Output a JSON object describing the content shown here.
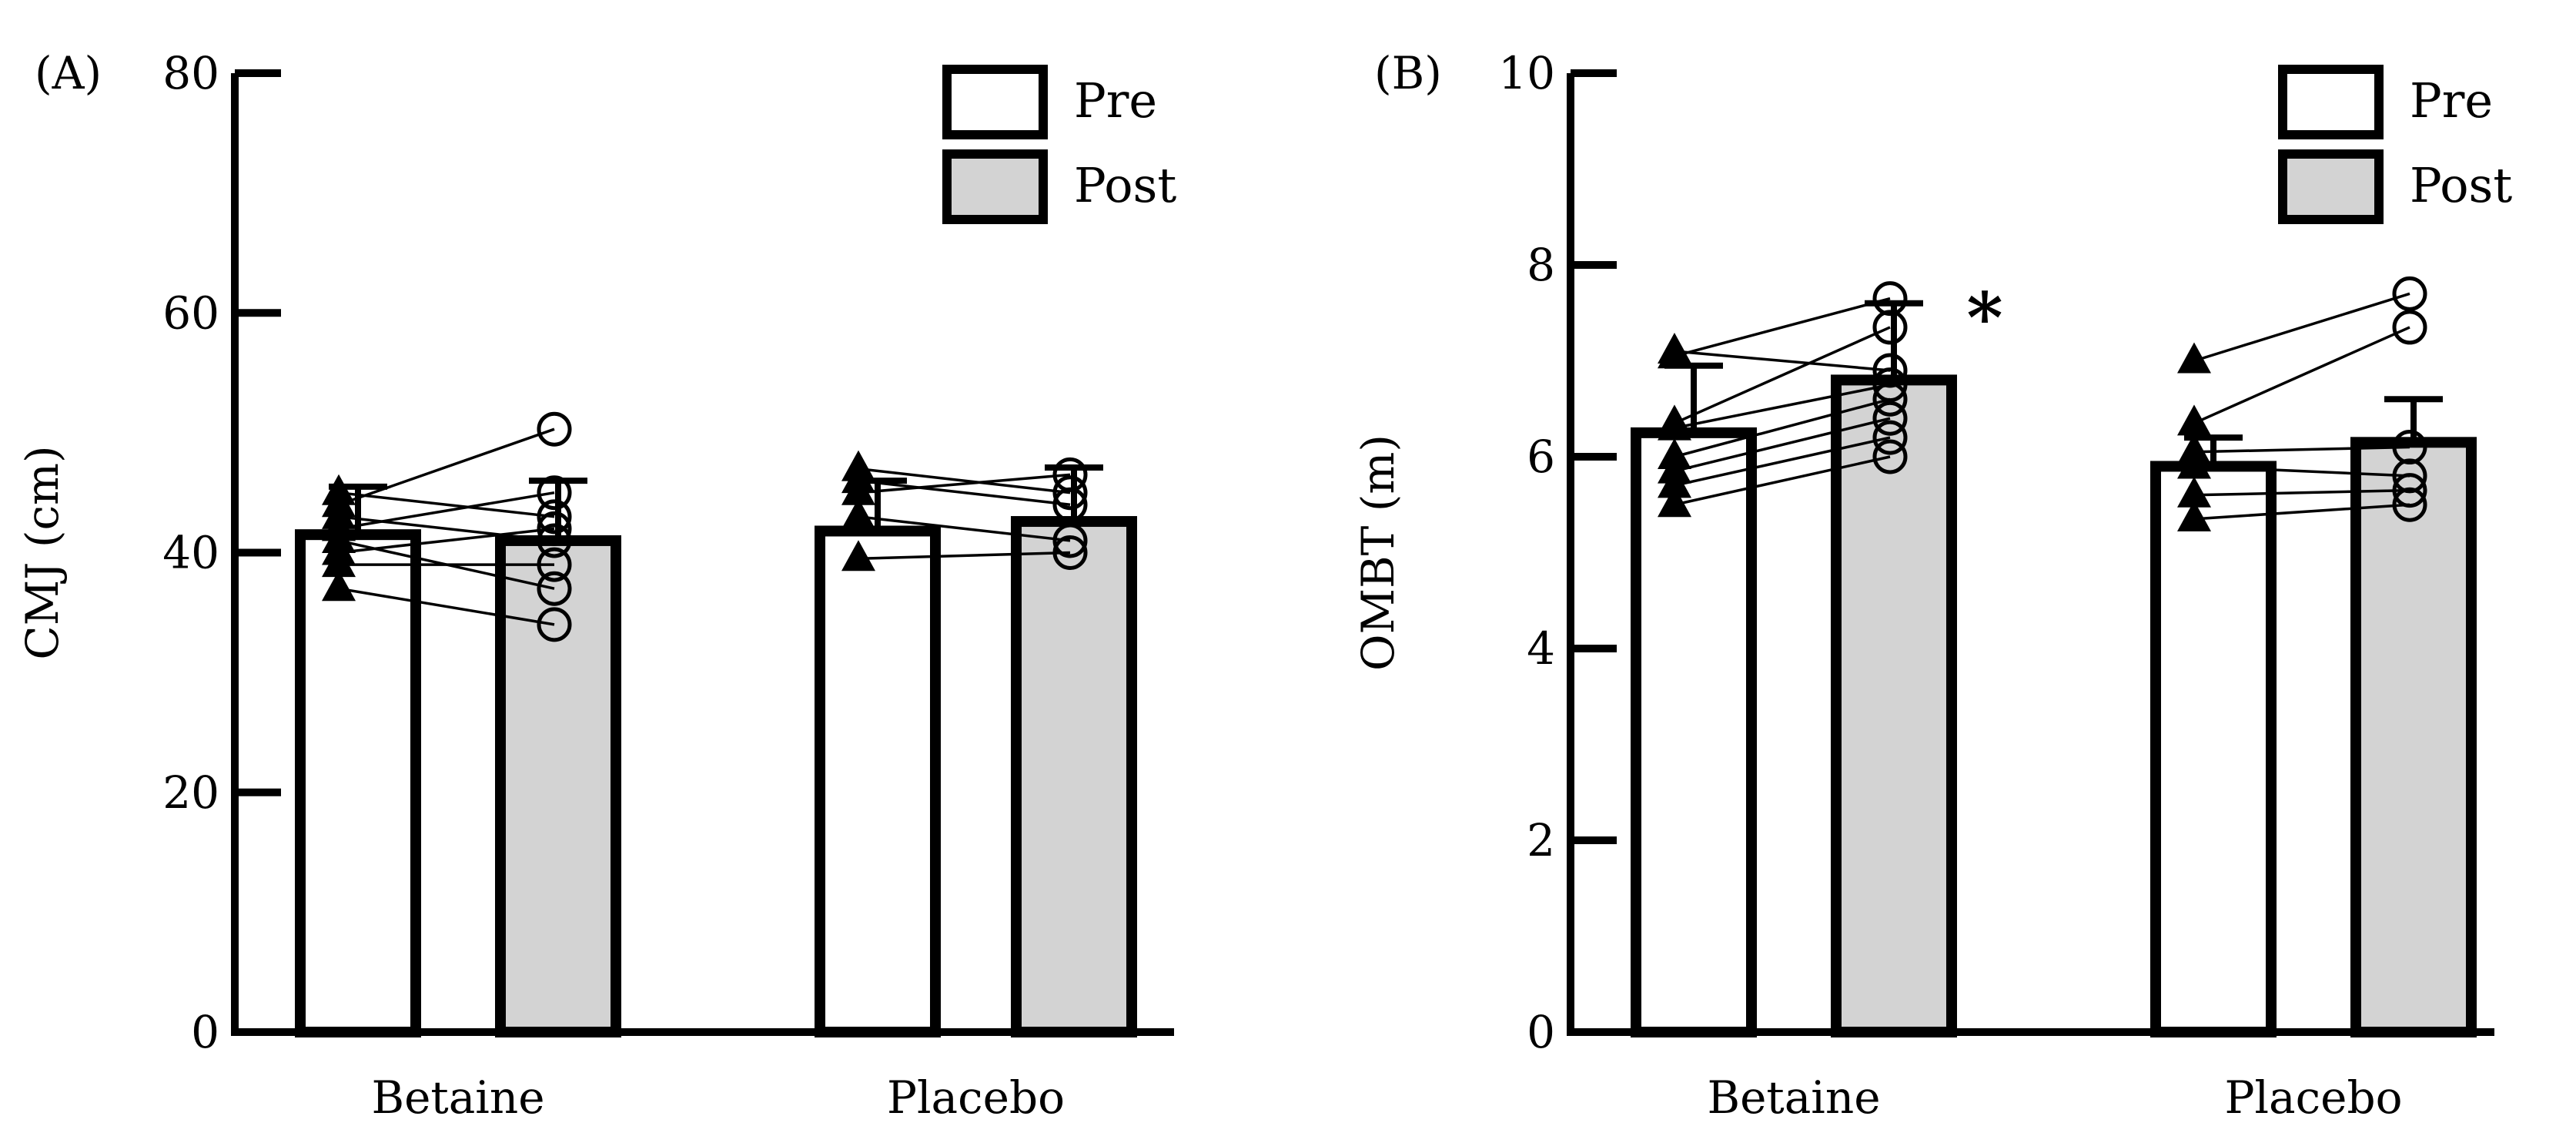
{
  "chart_data": [
    {
      "type": "bar",
      "panel_label": "(A)",
      "ylabel": "CMJ (cm)",
      "xlabel": "",
      "ylim": [
        0,
        80
      ],
      "yticks": [
        0,
        20,
        40,
        60,
        80
      ],
      "categories": [
        "Betaine",
        "Placebo"
      ],
      "series": [
        {
          "name": "Pre",
          "values": [
            41.5,
            41.8
          ],
          "sd": [
            4,
            4.2
          ]
        },
        {
          "name": "Post",
          "values": [
            41,
            42.6
          ],
          "sd": [
            5,
            4.5
          ]
        }
      ],
      "individual": [
        {
          "pre": [
            44,
            40,
            37,
            41,
            43,
            39,
            45,
            42
          ],
          "post": [
            50.3,
            42,
            34,
            37,
            41,
            39,
            43,
            45
          ]
        },
        {
          "pre": [
            39.5,
            43,
            46,
            47,
            45
          ],
          "post": [
            40,
            41,
            44,
            45,
            46.5
          ]
        }
      ],
      "legend": {
        "position": "top-right",
        "labels": [
          "Pre",
          "Post"
        ]
      },
      "significance": []
    },
    {
      "type": "bar",
      "panel_label": "(B)",
      "ylabel": "OMBT (m)",
      "xlabel": "",
      "ylim": [
        0,
        10
      ],
      "yticks": [
        0,
        2,
        4,
        6,
        8,
        10
      ],
      "categories": [
        "Betaine",
        "Placebo"
      ],
      "series": [
        {
          "name": "Pre",
          "values": [
            6.25,
            5.9
          ],
          "sd": [
            0.7,
            0.3
          ]
        },
        {
          "name": "Post",
          "values": [
            6.8,
            6.15
          ],
          "sd": [
            0.8,
            0.45
          ]
        }
      ],
      "individual": [
        {
          "pre": [
            7.05,
            6.35,
            5.5,
            5.7,
            5.85,
            6.0,
            6.3,
            7.1
          ],
          "post": [
            7.65,
            7.35,
            6.0,
            6.2,
            6.4,
            6.6,
            6.75,
            6.9
          ]
        },
        {
          "pre": [
            7.0,
            6.35,
            5.35,
            5.6,
            5.9,
            6.05
          ],
          "post": [
            7.7,
            7.35,
            5.5,
            5.65,
            5.8,
            6.1
          ]
        }
      ],
      "legend": {
        "position": "top-right",
        "labels": [
          "Pre",
          "Post"
        ]
      },
      "significance": [
        {
          "category": "Betaine",
          "series": "Post",
          "label": "*"
        }
      ]
    }
  ],
  "colors": {
    "pre_fill": "#ffffff",
    "post_fill": "#d3d3d3",
    "stroke": "#000000"
  }
}
